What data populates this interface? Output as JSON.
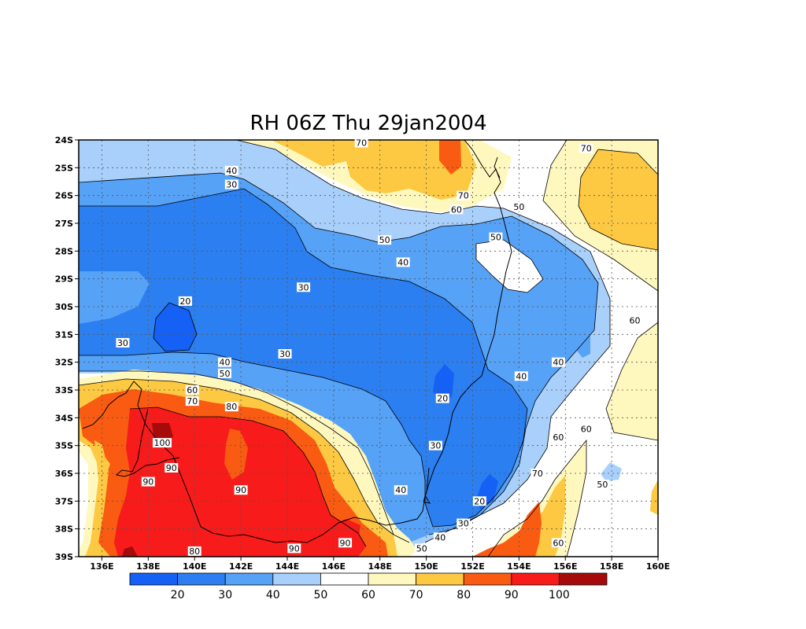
{
  "title": "RH 06Z Thu 29jan2004",
  "map": {
    "lon_range": [
      135,
      160
    ],
    "lat_range": [
      -39,
      -24
    ],
    "lon_ticks": [
      {
        "value": 136,
        "label": "136E"
      },
      {
        "value": 138,
        "label": "138E"
      },
      {
        "value": 140,
        "label": "140E"
      },
      {
        "value": 142,
        "label": "142E"
      },
      {
        "value": 144,
        "label": "144E"
      },
      {
        "value": 146,
        "label": "146E"
      },
      {
        "value": 148,
        "label": "148E"
      },
      {
        "value": 150,
        "label": "150E"
      },
      {
        "value": 152,
        "label": "152E"
      },
      {
        "value": 154,
        "label": "154E"
      },
      {
        "value": 156,
        "label": "156E"
      },
      {
        "value": 158,
        "label": "158E"
      },
      {
        "value": 160,
        "label": "160E"
      }
    ],
    "lat_ticks": [
      {
        "value": -24,
        "label": "24S"
      },
      {
        "value": -25,
        "label": "25S"
      },
      {
        "value": -26,
        "label": "26S"
      },
      {
        "value": -27,
        "label": "27S"
      },
      {
        "value": -28,
        "label": "28S"
      },
      {
        "value": -29,
        "label": "29S"
      },
      {
        "value": -30,
        "label": "30S"
      },
      {
        "value": -31,
        "label": "31S"
      },
      {
        "value": -32,
        "label": "32S"
      },
      {
        "value": -33,
        "label": "33S"
      },
      {
        "value": -34,
        "label": "34S"
      },
      {
        "value": -35,
        "label": "35S"
      },
      {
        "value": -36,
        "label": "36S"
      },
      {
        "value": -37,
        "label": "37S"
      },
      {
        "value": -38,
        "label": "38S"
      },
      {
        "value": -39,
        "label": "39S"
      }
    ],
    "grid": true,
    "grid_style": "dotted"
  },
  "colorbar": {
    "bins": [
      {
        "color": "#1560f5"
      },
      {
        "color": "#2b7ff0"
      },
      {
        "color": "#56a2f7"
      },
      {
        "color": "#a9d0fb"
      },
      {
        "color": "#ffffff"
      },
      {
        "color": "#fff8be"
      },
      {
        "color": "#fdc842"
      },
      {
        "color": "#fa5b12"
      },
      {
        "color": "#f71b1b"
      },
      {
        "color": "#a50b0b"
      }
    ],
    "labels": [
      "20",
      "30",
      "40",
      "50",
      "60",
      "70",
      "80",
      "90",
      "100"
    ]
  },
  "contour_labels": [
    {
      "text": "70",
      "lon": 147.2,
      "lat": -24.1
    },
    {
      "text": "70",
      "lon": 156.9,
      "lat": -24.3
    },
    {
      "text": "40",
      "lon": 141.6,
      "lat": -25.1
    },
    {
      "text": "30",
      "lon": 141.6,
      "lat": -25.6
    },
    {
      "text": "70",
      "lon": 151.6,
      "lat": -26.0
    },
    {
      "text": "60",
      "lon": 151.3,
      "lat": -26.5
    },
    {
      "text": "50",
      "lon": 154.0,
      "lat": -26.4
    },
    {
      "text": "50",
      "lon": 153.0,
      "lat": -27.5
    },
    {
      "text": "50",
      "lon": 148.2,
      "lat": -27.6
    },
    {
      "text": "40",
      "lon": 149.0,
      "lat": -28.4
    },
    {
      "text": "30",
      "lon": 144.7,
      "lat": -29.3
    },
    {
      "text": "20",
      "lon": 139.6,
      "lat": -29.8
    },
    {
      "text": "60",
      "lon": 159.0,
      "lat": -30.5
    },
    {
      "text": "30",
      "lon": 136.9,
      "lat": -31.3
    },
    {
      "text": "30",
      "lon": 143.9,
      "lat": -31.7
    },
    {
      "text": "40",
      "lon": 141.3,
      "lat": -32.0
    },
    {
      "text": "40",
      "lon": 155.7,
      "lat": -32.0
    },
    {
      "text": "50",
      "lon": 141.3,
      "lat": -32.4
    },
    {
      "text": "40",
      "lon": 154.1,
      "lat": -32.5
    },
    {
      "text": "60",
      "lon": 139.9,
      "lat": -33.0
    },
    {
      "text": "70",
      "lon": 139.9,
      "lat": -33.4
    },
    {
      "text": "20",
      "lon": 150.7,
      "lat": -33.3
    },
    {
      "text": "80",
      "lon": 141.6,
      "lat": -33.6
    },
    {
      "text": "60",
      "lon": 156.9,
      "lat": -34.4
    },
    {
      "text": "60",
      "lon": 155.7,
      "lat": -34.7
    },
    {
      "text": "100",
      "lon": 138.6,
      "lat": -34.9
    },
    {
      "text": "30",
      "lon": 150.4,
      "lat": -35.0
    },
    {
      "text": "90",
      "lon": 139.0,
      "lat": -35.8
    },
    {
      "text": "70",
      "lon": 154.8,
      "lat": -36.0
    },
    {
      "text": "90",
      "lon": 138.0,
      "lat": -36.3
    },
    {
      "text": "50",
      "lon": 157.6,
      "lat": -36.4
    },
    {
      "text": "90",
      "lon": 142.0,
      "lat": -36.6
    },
    {
      "text": "40",
      "lon": 148.9,
      "lat": -36.6
    },
    {
      "text": "20",
      "lon": 152.3,
      "lat": -37.0
    },
    {
      "text": "30",
      "lon": 151.6,
      "lat": -37.8
    },
    {
      "text": "90",
      "lon": 146.5,
      "lat": -38.5
    },
    {
      "text": "40",
      "lon": 150.6,
      "lat": -38.3
    },
    {
      "text": "60",
      "lon": 155.7,
      "lat": -38.5
    },
    {
      "text": "90",
      "lon": 144.3,
      "lat": -38.7
    },
    {
      "text": "80",
      "lon": 140.0,
      "lat": -38.8
    },
    {
      "text": "50",
      "lon": 149.8,
      "lat": -38.7
    }
  ]
}
